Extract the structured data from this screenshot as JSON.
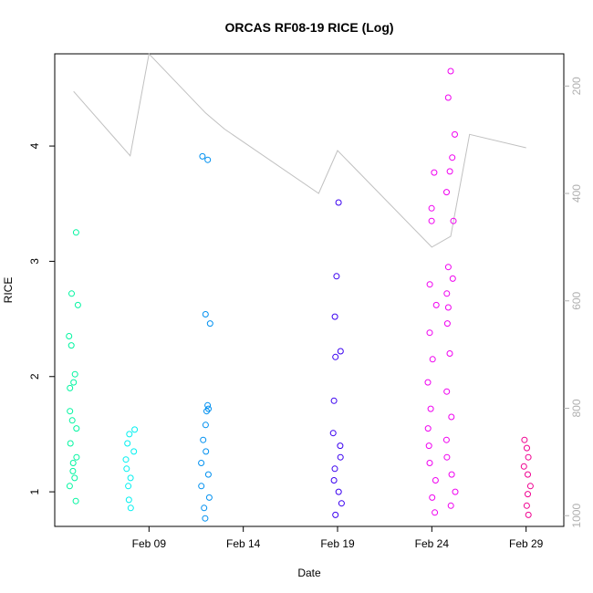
{
  "chart_data": {
    "type": "scatter",
    "title": "ORCAS RF08-19 RICE (Log)",
    "xlabel": "Date",
    "ylabel": "RICE",
    "x_type": "date",
    "xlim": [
      "2016-02-04",
      "2016-03-02"
    ],
    "ylim": [
      0.7,
      4.8
    ],
    "x_ticks": [
      {
        "date": "2016-02-09",
        "label": "Feb 09"
      },
      {
        "date": "2016-02-14",
        "label": "Feb 14"
      },
      {
        "date": "2016-02-19",
        "label": "Feb 19"
      },
      {
        "date": "2016-02-24",
        "label": "Feb 24"
      },
      {
        "date": "2016-02-29",
        "label": "Feb 29"
      }
    ],
    "y_ticks": [
      1,
      2,
      3,
      4
    ],
    "y2_axis": {
      "side": "right",
      "reversed": true,
      "color": "#b0b0b0",
      "range": [
        1020,
        140
      ],
      "ticks": [
        200,
        400,
        600,
        800,
        1000
      ]
    },
    "grid": false,
    "legend": "none",
    "series": [
      {
        "color": "#00f5a0",
        "points": [
          [
            "2016-02-05",
            0.92
          ],
          [
            "2016-02-05",
            1.05
          ],
          [
            "2016-02-05",
            1.18
          ],
          [
            "2016-02-05",
            1.3
          ],
          [
            "2016-02-05",
            1.42
          ],
          [
            "2016-02-05",
            1.55
          ],
          [
            "2016-02-05",
            1.7
          ],
          [
            "2016-02-05",
            2.62
          ],
          [
            "2016-02-05",
            2.72
          ],
          [
            "2016-02-05",
            3.25
          ],
          [
            "2016-02-05",
            2.35
          ],
          [
            "2016-02-05",
            2.27
          ],
          [
            "2016-02-05",
            2.02
          ],
          [
            "2016-02-05",
            1.95
          ],
          [
            "2016-02-05",
            1.9
          ],
          [
            "2016-02-05",
            1.62
          ],
          [
            "2016-02-05",
            1.12
          ],
          [
            "2016-02-05",
            1.25
          ]
        ]
      },
      {
        "color": "#00f0f0",
        "points": [
          [
            "2016-02-08",
            0.86
          ],
          [
            "2016-02-08",
            0.93
          ],
          [
            "2016-02-08",
            1.05
          ],
          [
            "2016-02-08",
            1.12
          ],
          [
            "2016-02-08",
            1.2
          ],
          [
            "2016-02-08",
            1.28
          ],
          [
            "2016-02-08",
            1.35
          ],
          [
            "2016-02-08",
            1.42
          ],
          [
            "2016-02-08",
            1.5
          ],
          [
            "2016-02-08",
            1.54
          ]
        ]
      },
      {
        "color": "#0090f0",
        "points": [
          [
            "2016-02-12",
            0.77
          ],
          [
            "2016-02-12",
            0.86
          ],
          [
            "2016-02-12",
            0.95
          ],
          [
            "2016-02-12",
            1.05
          ],
          [
            "2016-02-12",
            1.15
          ],
          [
            "2016-02-12",
            1.25
          ],
          [
            "2016-02-12",
            1.35
          ],
          [
            "2016-02-12",
            1.45
          ],
          [
            "2016-02-12",
            1.58
          ],
          [
            "2016-02-12",
            1.72
          ],
          [
            "2016-02-12",
            1.75
          ],
          [
            "2016-02-12",
            2.46
          ],
          [
            "2016-02-12",
            2.54
          ],
          [
            "2016-02-12",
            3.88
          ],
          [
            "2016-02-12",
            3.91
          ],
          [
            "2016-02-12",
            1.7
          ]
        ]
      },
      {
        "color": "#3a00f0",
        "points": [
          [
            "2016-02-19",
            0.8
          ],
          [
            "2016-02-19",
            0.9
          ],
          [
            "2016-02-19",
            1.0
          ],
          [
            "2016-02-19",
            1.1
          ],
          [
            "2016-02-19",
            1.2
          ],
          [
            "2016-02-19",
            1.3
          ],
          [
            "2016-02-19",
            1.4
          ],
          [
            "2016-02-19",
            1.51
          ],
          [
            "2016-02-19",
            1.79
          ],
          [
            "2016-02-19",
            2.17
          ],
          [
            "2016-02-19",
            2.22
          ],
          [
            "2016-02-19",
            2.52
          ],
          [
            "2016-02-19",
            2.87
          ],
          [
            "2016-02-19",
            3.51
          ]
        ]
      },
      {
        "color": "#f000f0",
        "points": [
          [
            "2016-02-24",
            0.82
          ],
          [
            "2016-02-24",
            0.95
          ],
          [
            "2016-02-24",
            1.1
          ],
          [
            "2016-02-24",
            1.25
          ],
          [
            "2016-02-24",
            1.4
          ],
          [
            "2016-02-24",
            1.55
          ],
          [
            "2016-02-24",
            1.72
          ],
          [
            "2016-02-24",
            1.95
          ],
          [
            "2016-02-24",
            2.15
          ],
          [
            "2016-02-24",
            2.38
          ],
          [
            "2016-02-24",
            2.62
          ],
          [
            "2016-02-24",
            2.8
          ],
          [
            "2016-02-24",
            3.35
          ],
          [
            "2016-02-24",
            3.46
          ],
          [
            "2016-02-24",
            3.77
          ],
          [
            "2016-02-25",
            0.88
          ],
          [
            "2016-02-25",
            1.0
          ],
          [
            "2016-02-25",
            1.15
          ],
          [
            "2016-02-25",
            1.3
          ],
          [
            "2016-02-25",
            1.45
          ],
          [
            "2016-02-25",
            1.65
          ],
          [
            "2016-02-25",
            1.87
          ],
          [
            "2016-02-25",
            2.2
          ],
          [
            "2016-02-25",
            2.46
          ],
          [
            "2016-02-25",
            2.6
          ],
          [
            "2016-02-25",
            2.72
          ],
          [
            "2016-02-25",
            2.85
          ],
          [
            "2016-02-25",
            2.95
          ],
          [
            "2016-02-25",
            3.35
          ],
          [
            "2016-02-25",
            3.6
          ],
          [
            "2016-02-25",
            3.78
          ],
          [
            "2016-02-25",
            3.9
          ],
          [
            "2016-02-25",
            4.1
          ],
          [
            "2016-02-25",
            4.42
          ],
          [
            "2016-02-25",
            4.65
          ]
        ]
      },
      {
        "color": "#f00090",
        "points": [
          [
            "2016-02-29",
            0.8
          ],
          [
            "2016-02-29",
            0.88
          ],
          [
            "2016-02-29",
            0.98
          ],
          [
            "2016-02-29",
            1.05
          ],
          [
            "2016-02-29",
            1.15
          ],
          [
            "2016-02-29",
            1.22
          ],
          [
            "2016-02-29",
            1.3
          ],
          [
            "2016-02-29",
            1.38
          ],
          [
            "2016-02-29",
            1.45
          ]
        ]
      }
    ],
    "y2_series": {
      "color": "#c0c0c0",
      "points": [
        [
          "2016-02-05",
          210
        ],
        [
          "2016-02-08",
          330
        ],
        [
          "2016-02-09",
          140
        ],
        [
          "2016-02-12",
          250
        ],
        [
          "2016-02-13",
          280
        ],
        [
          "2016-02-18",
          400
        ],
        [
          "2016-02-19",
          320
        ],
        [
          "2016-02-24",
          500
        ],
        [
          "2016-02-25",
          480
        ],
        [
          "2016-02-26",
          290
        ],
        [
          "2016-02-29",
          315
        ]
      ]
    }
  }
}
